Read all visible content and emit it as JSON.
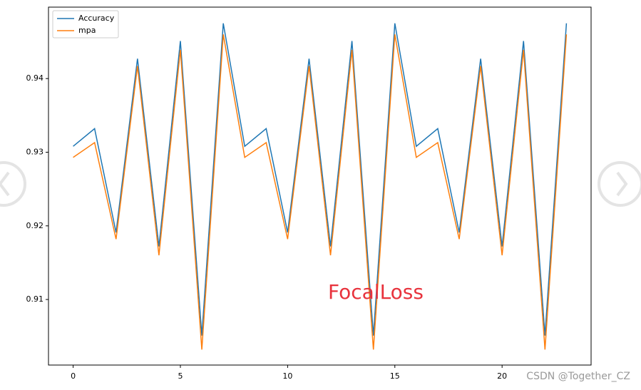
{
  "chart_data": {
    "type": "line",
    "x": [
      0,
      1,
      2,
      3,
      4,
      5,
      6,
      7,
      8,
      9,
      10,
      11,
      12,
      13,
      14,
      15,
      16,
      17,
      18,
      19,
      20,
      21,
      22,
      23
    ],
    "series": [
      {
        "name": "Accuracy",
        "color": "#1f77b4",
        "values": [
          0.9308,
          0.9332,
          0.9191,
          0.9427,
          0.9172,
          0.9451,
          0.9051,
          0.9475,
          0.9308,
          0.9332,
          0.9191,
          0.9427,
          0.9172,
          0.9451,
          0.9051,
          0.9475,
          0.9308,
          0.9332,
          0.9191,
          0.9427,
          0.9172,
          0.9451,
          0.9051,
          0.9475
        ]
      },
      {
        "name": "mpa",
        "color": "#ff7f0e",
        "values": [
          0.9293,
          0.9313,
          0.9182,
          0.9417,
          0.916,
          0.9439,
          0.9032,
          0.946,
          0.9293,
          0.9313,
          0.9182,
          0.9417,
          0.916,
          0.9439,
          0.9032,
          0.946,
          0.9293,
          0.9313,
          0.9182,
          0.9417,
          0.916,
          0.9439,
          0.9032,
          0.946
        ]
      }
    ],
    "xlim": [
      -1.15,
      24.15
    ],
    "xticks": [
      0,
      5,
      10,
      15,
      20
    ],
    "ylim": [
      0.9011,
      0.9497
    ],
    "yticks": [
      0.91,
      0.92,
      0.93,
      0.94
    ],
    "legend": "upper left",
    "annotation": "FocalLoss",
    "watermark": "CSDN @Together_CZ"
  }
}
